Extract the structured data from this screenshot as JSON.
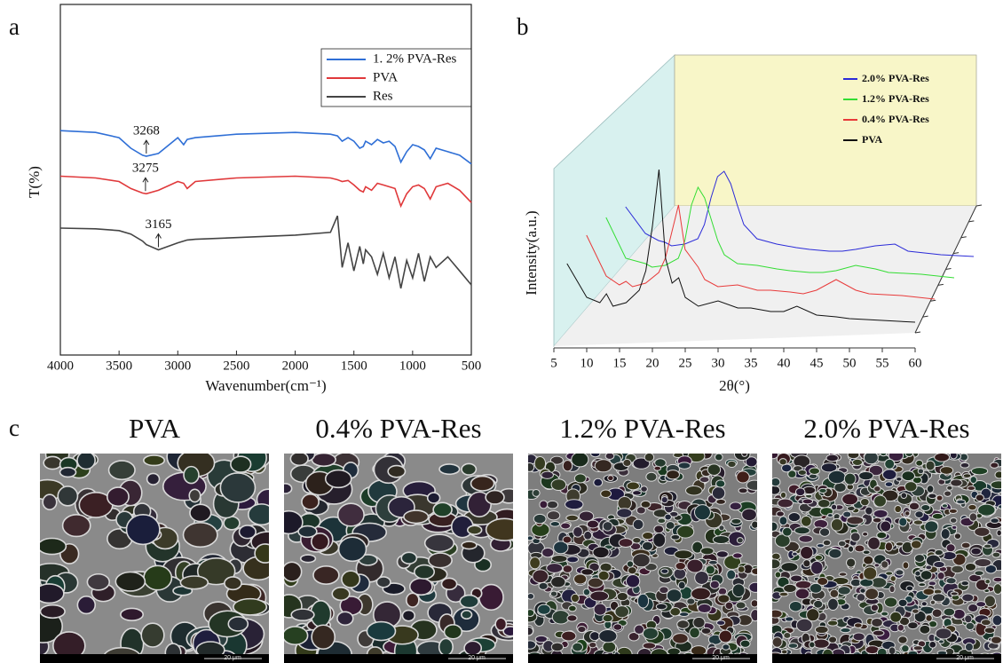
{
  "panel_labels": [
    "a",
    "b",
    "c"
  ],
  "chart_data": [
    {
      "type": "line",
      "reversed_x": true,
      "xlabel": "Wavenumber(cm⁻¹)",
      "ylabel": "T(%)",
      "xlim": [
        4000,
        500
      ],
      "xticks": [
        4000,
        3500,
        3000,
        2500,
        2000,
        1500,
        1000,
        500
      ],
      "ylim": [
        0,
        100
      ],
      "x": [
        4000,
        3700,
        3500,
        3400,
        3300,
        3268,
        3165,
        3000,
        2950,
        2920,
        2850,
        2500,
        2000,
        1700,
        1640,
        1600,
        1550,
        1500,
        1450,
        1420,
        1400,
        1350,
        1300,
        1250,
        1200,
        1150,
        1100,
        1050,
        1000,
        950,
        900,
        850,
        800,
        700,
        600,
        500
      ],
      "series": [
        {
          "name": "1. 2% PVA-Res",
          "color": "#2f6fd6",
          "values": [
            64,
            63.5,
            62,
            59,
            57,
            56.7,
            57.5,
            62,
            60,
            61.5,
            62,
            63,
            63.5,
            63,
            62.5,
            61,
            62,
            61,
            59,
            59.5,
            61,
            60,
            61.5,
            60.5,
            61,
            59.5,
            55,
            58,
            60,
            59.5,
            58.5,
            56,
            59,
            58,
            57,
            54.5
          ]
        },
        {
          "name": "PVA",
          "color": "#e0393b",
          "values": [
            51,
            50.5,
            49.5,
            47.5,
            46.2,
            46,
            47,
            49.5,
            49,
            47.5,
            49.5,
            50.5,
            51,
            50.5,
            50,
            49.5,
            49.8,
            48.5,
            47,
            46.5,
            48,
            47,
            49,
            48.5,
            48,
            47.5,
            42.5,
            46,
            48,
            48.5,
            47.5,
            44.5,
            48,
            49,
            47,
            43.5
          ]
        },
        {
          "name": "Res",
          "color": "#444444",
          "values": [
            36.2,
            36,
            35.5,
            34.5,
            32.5,
            31.5,
            30,
            32,
            32.5,
            32.8,
            33,
            33.5,
            34.2,
            35,
            39.7,
            25,
            32,
            24,
            31,
            26,
            30,
            28,
            23,
            29,
            22,
            28,
            19,
            27,
            22,
            29,
            21,
            28,
            25,
            28,
            24,
            20
          ]
        }
      ],
      "annotations": [
        {
          "text": "3268",
          "x": 3268,
          "y": 56.7
        },
        {
          "text": "3275",
          "x": 3275,
          "y": 46
        },
        {
          "text": "3165",
          "x": 3165,
          "y": 30
        }
      ]
    },
    {
      "type": "waterfall",
      "xlabel": "2θ(°)",
      "ylabel": "Intensity(a.u.)",
      "xlim": [
        5,
        60
      ],
      "xticks": [
        5,
        10,
        15,
        20,
        25,
        30,
        35,
        40,
        45,
        50,
        55,
        60
      ],
      "ylim": [
        0,
        100
      ],
      "x": [
        7,
        10,
        12,
        13,
        14,
        16,
        18,
        19,
        20,
        21,
        22,
        23,
        24,
        25,
        27,
        30,
        33,
        35,
        38,
        40,
        42,
        45,
        48,
        50,
        55,
        60
      ],
      "series": [
        {
          "name": "2.0% PVA-Res",
          "color": "#2b2bd8",
          "values": [
            35,
            20,
            16,
            15,
            13,
            14,
            17,
            25,
            40,
            52,
            55,
            48,
            36,
            25,
            17,
            14,
            12,
            11,
            10,
            10,
            11,
            13,
            14,
            10,
            8,
            7
          ]
        },
        {
          "name": "1.2% PVA-Res",
          "color": "#33dd33",
          "values": [
            41,
            18,
            16,
            15,
            13,
            14,
            18,
            28,
            48,
            58,
            52,
            40,
            28,
            20,
            15,
            14,
            12,
            11,
            10,
            10,
            11,
            14,
            12,
            10,
            9,
            7
          ]
        },
        {
          "name": "0.4% PVA-Res",
          "color": "#e83a3a",
          "values": [
            43,
            20,
            15,
            17,
            14,
            16,
            22,
            30,
            45,
            60,
            35,
            30,
            25,
            18,
            14,
            15,
            12,
            12,
            11,
            10,
            12,
            18,
            12,
            10,
            9,
            7
          ]
        },
        {
          "name": "PVA",
          "color": "#111111",
          "values": [
            39,
            20,
            17,
            22,
            15,
            17,
            24,
            35,
            60,
            92,
            42,
            28,
            31,
            20,
            15,
            18,
            14,
            14,
            12,
            12,
            15,
            10,
            9,
            8,
            7,
            6
          ]
        }
      ]
    }
  ],
  "sem_images": {
    "titles": [
      "PVA",
      "0.4% PVA-Res",
      "1.2% PVA-Res",
      "2.0% PVA-Res"
    ],
    "scale_bar": "20 μm"
  }
}
